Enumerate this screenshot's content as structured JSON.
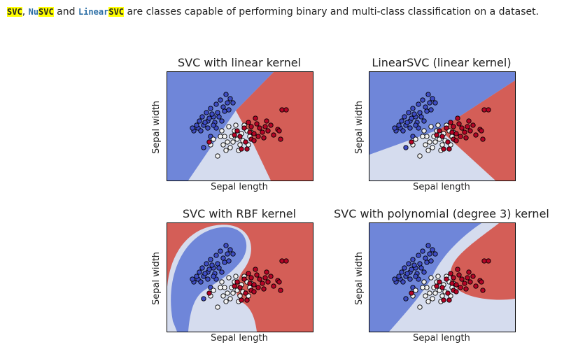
{
  "intro": {
    "svc": "SVC",
    "sep1": ", ",
    "nu_prefix": "Nu",
    "nu_svc": "SVC",
    "and": " and ",
    "linear_prefix": "Linear",
    "linear_svc": "SVC",
    "rest": " are classes capable of performing binary and multi-class classification on a dataset."
  },
  "colors": {
    "blue_region": "#6f86d9",
    "white_region": "#d5dcee",
    "red_region": "#d45e57",
    "point_blue": "#3f4dc4",
    "point_white": "#f2f2f2",
    "point_red": "#b40426"
  },
  "plots": [
    {
      "title": "SVC with linear kernel",
      "xlabel": "Sepal length",
      "ylabel": "Sepal width"
    },
    {
      "title": "LinearSVC (linear kernel)",
      "xlabel": "Sepal length",
      "ylabel": "Sepal width"
    },
    {
      "title": "SVC with RBF kernel",
      "xlabel": "Sepal length",
      "ylabel": "Sepal width"
    },
    {
      "title": "SVC with polynomial (degree 3) kernel",
      "xlabel": "Sepal length",
      "ylabel": "Sepal width"
    }
  ]
}
